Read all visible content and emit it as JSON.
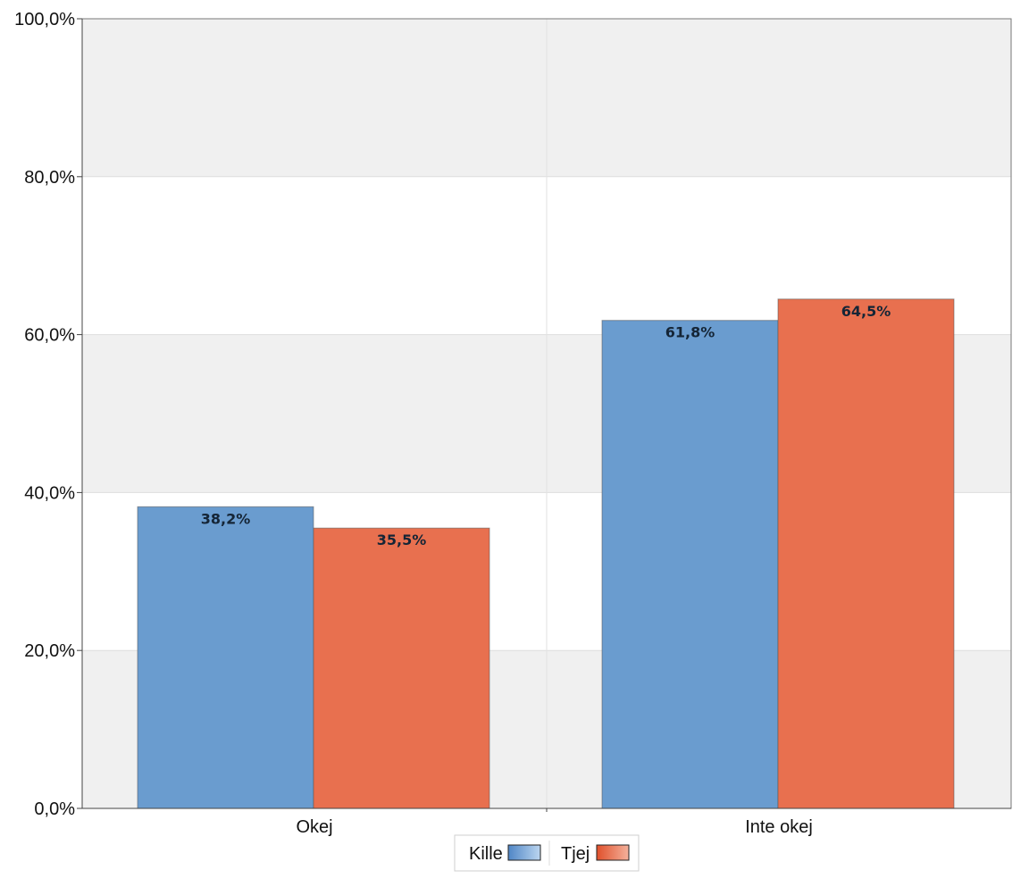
{
  "chart_data": {
    "type": "bar",
    "categories": [
      "Okej",
      "Inte okej"
    ],
    "series": [
      {
        "name": "Kille",
        "values": [
          38.2,
          61.8
        ],
        "color": "#6a9ccf",
        "labels": [
          "38,2%",
          "61,8%"
        ]
      },
      {
        "name": "Tjej",
        "values": [
          35.5,
          64.5
        ],
        "color": "#e8704f",
        "labels": [
          "35,5%",
          "64,5%"
        ]
      }
    ],
    "ylim": [
      0,
      100
    ],
    "yticks": [
      0,
      20,
      40,
      60,
      80,
      100
    ],
    "ytick_labels": [
      "0,0%",
      "20,0%",
      "40,0%",
      "60,0%",
      "80,0%",
      "100,0%"
    ],
    "title": "",
    "xlabel": "",
    "ylabel": "",
    "grid": true,
    "band_colors": [
      "#f0f0f0",
      "#ffffff"
    ],
    "legend_position": "bottom-center"
  }
}
